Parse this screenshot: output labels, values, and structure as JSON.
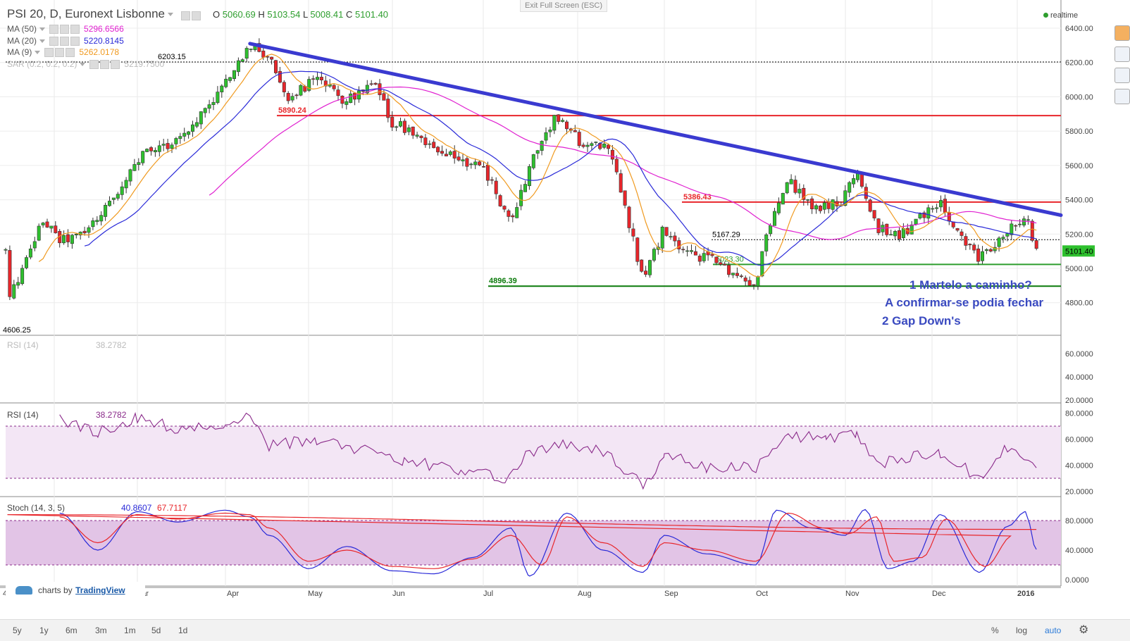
{
  "header": {
    "symbol": "PSI 20, D, Euronext Lisbonne",
    "ohlc": {
      "o_label": "O",
      "o": "5060.69",
      "h_label": "H",
      "h": "5103.54",
      "l_label": "L",
      "l": "5008.41",
      "c_label": "C",
      "c": "5101.40"
    },
    "realtime": "realtime",
    "exit_fullscreen": "Exit Full Screen (ESC)",
    "indicators": [
      {
        "label": "MA (50)",
        "value": "5296.6566",
        "color": "#e020d0"
      },
      {
        "label": "MA (20)",
        "value": "5220.8145",
        "color": "#2a2ad8"
      },
      {
        "label": "MA (9)",
        "value": "5262.0178",
        "color": "#f09a20"
      },
      {
        "label": "SAR (0.2, 0.2, 0.2)",
        "value": "5219.7500",
        "color": "#bbbbbb"
      }
    ]
  },
  "chart_data": [
    {
      "type": "candlestick",
      "title": "PSI 20, D, Euronext Lisbonne",
      "x_ticks": [
        "4",
        "Feb",
        "Mar",
        "Apr",
        "May",
        "Jun",
        "Jul",
        "Aug",
        "Sep",
        "Oct",
        "Nov",
        "Dec",
        "2016"
      ],
      "y_ticks": [
        "6400.00",
        "6200.00",
        "6000.00",
        "5800.00",
        "5600.00",
        "5400.00",
        "5200.00",
        "5000.00",
        "4800.00"
      ],
      "ylim": [
        4600,
        6450
      ],
      "last_price": "5101.40",
      "price_labels": [
        {
          "text": "6203.15",
          "value": 6203.15,
          "color": "#000000"
        },
        {
          "text": "5890.24",
          "value": 5890.24,
          "color": "#e8262b"
        },
        {
          "text": "5386.43",
          "value": 5386.43,
          "color": "#e8262b"
        },
        {
          "text": "5167.29",
          "value": 5167.29,
          "color": "#000000"
        },
        {
          "text": "5023.30",
          "value": 5023.3,
          "color": "#2e9e2e"
        },
        {
          "text": "4896.39",
          "value": 4896.39,
          "color": "#0a7a0a"
        },
        {
          "text": "4606.25",
          "value": 4606.25,
          "color": "#000000"
        }
      ],
      "horizontal_lines": [
        {
          "value": 6203.15,
          "style": "dotted",
          "color": "#000000"
        },
        {
          "value": 5890.24,
          "style": "solid",
          "color": "#e8262b"
        },
        {
          "value": 5386.43,
          "style": "solid",
          "color": "#e8262b"
        },
        {
          "value": 5167.29,
          "style": "dotted",
          "color": "#000000"
        },
        {
          "value": 5023.3,
          "style": "solid",
          "color": "#2e9e2e"
        },
        {
          "value": 4896.39,
          "style": "solid",
          "color": "#0a7a0a"
        }
      ],
      "trendline": {
        "from": {
          "x": "Apr 10",
          "y": 6310
        },
        "to": {
          "x": "Jan 8",
          "y": 5320
        },
        "color": "#3a3ad0"
      },
      "annotations": [
        "1 Martelo a caminho?",
        "A confirmar-se podia fechar",
        "2 Gap Down's"
      ],
      "series": [
        {
          "name": "MA (50)",
          "color": "#e020d0"
        },
        {
          "name": "MA (20)",
          "color": "#2a2ad8"
        },
        {
          "name": "MA (9)",
          "color": "#f09a20"
        }
      ],
      "close_path": [
        [
          "Jan 05",
          4800
        ],
        [
          "Jan 15",
          5020
        ],
        [
          "Jan 26",
          5290
        ],
        [
          "Feb 03",
          5160
        ],
        [
          "Feb 12",
          5200
        ],
        [
          "Feb 20",
          5360
        ],
        [
          "Mar 03",
          5660
        ],
        [
          "Mar 16",
          5760
        ],
        [
          "Mar 25",
          5940
        ],
        [
          "Apr 02",
          6100
        ],
        [
          "Apr 10",
          6300
        ],
        [
          "Apr 17",
          6230
        ],
        [
          "Apr 24",
          6000
        ],
        [
          "May 04",
          6100
        ],
        [
          "May 14",
          5980
        ],
        [
          "May 25",
          6060
        ],
        [
          "Jun 01",
          5850
        ],
        [
          "Jun 08",
          5800
        ],
        [
          "Jun 17",
          5660
        ],
        [
          "Jun 24",
          5640
        ],
        [
          "Jul 02",
          5560
        ],
        [
          "Jul 10",
          5250
        ],
        [
          "Jul 16",
          5600
        ],
        [
          "Jul 24",
          5880
        ],
        [
          "Aug 03",
          5720
        ],
        [
          "Aug 12",
          5720
        ],
        [
          "Aug 24",
          4940
        ],
        [
          "Aug 31",
          5220
        ],
        [
          "Sep 08",
          5080
        ],
        [
          "Sep 17",
          5060
        ],
        [
          "Sep 25",
          4960
        ],
        [
          "Oct 01",
          4910
        ],
        [
          "Oct 05",
          5220
        ],
        [
          "Oct 12",
          5510
        ],
        [
          "Oct 20",
          5350
        ],
        [
          "Oct 30",
          5380
        ],
        [
          "Nov 05",
          5560
        ],
        [
          "Nov 12",
          5240
        ],
        [
          "Nov 20",
          5180
        ],
        [
          "Nov 27",
          5300
        ],
        [
          "Dec 04",
          5380
        ],
        [
          "Dec 10",
          5200
        ],
        [
          "Dec 18",
          5050
        ],
        [
          "Dec 28",
          5230
        ],
        [
          "Jan 04",
          5310
        ],
        [
          "Jan 08",
          5101
        ]
      ]
    },
    {
      "type": "line",
      "title": "RSI (14)",
      "value": "38.2782",
      "y_ticks": [
        "60.0000",
        "40.0000",
        "20.0000"
      ],
      "ylim": [
        20,
        70
      ],
      "empty": true
    },
    {
      "type": "line",
      "title": "RSI (14)",
      "value": "38.2782",
      "color": "#8a2a8a",
      "y_ticks": [
        "80.0000",
        "60.0000",
        "40.0000",
        "20.0000"
      ],
      "ylim": [
        20,
        80
      ],
      "band": [
        30,
        70
      ],
      "points": [
        [
          "Feb 03",
          76
        ],
        [
          "Feb 17",
          65
        ],
        [
          "Mar 01",
          76
        ],
        [
          "Mar 15",
          68
        ],
        [
          "Apr 01",
          72
        ],
        [
          "Apr 10",
          79
        ],
        [
          "Apr 17",
          55
        ],
        [
          "May 04",
          60
        ],
        [
          "May 20",
          52
        ],
        [
          "Jun 05",
          44
        ],
        [
          "Jun 24",
          36
        ],
        [
          "Jul 08",
          30
        ],
        [
          "Jul 16",
          50
        ],
        [
          "Jul 28",
          56
        ],
        [
          "Aug 10",
          50
        ],
        [
          "Aug 24",
          24
        ],
        [
          "Sep 01",
          48
        ],
        [
          "Sep 15",
          38
        ],
        [
          "Oct 01",
          38
        ],
        [
          "Oct 12",
          63
        ],
        [
          "Oct 25",
          60
        ],
        [
          "Nov 05",
          64
        ],
        [
          "Nov 12",
          41
        ],
        [
          "Nov 25",
          46
        ],
        [
          "Dec 04",
          50
        ],
        [
          "Dec 18",
          30
        ],
        [
          "Dec 28",
          54
        ],
        [
          "Jan 08",
          38
        ]
      ]
    },
    {
      "type": "line",
      "title": "Stoch (14, 3, 5)",
      "y_ticks": [
        "80.0000",
        "40.0000",
        "0.0000"
      ],
      "ylim": [
        0,
        100
      ],
      "band": [
        20,
        80
      ],
      "series": [
        {
          "name": "%K",
          "value": "40.8607",
          "color": "#2a2ad8",
          "points": [
            [
              "Feb 03",
              90
            ],
            [
              "Feb 17",
              40
            ],
            [
              "Mar 01",
              92
            ],
            [
              "Mar 15",
              78
            ],
            [
              "Apr 01",
              94
            ],
            [
              "Apr 10",
              85
            ],
            [
              "Apr 17",
              60
            ],
            [
              "May 01",
              15
            ],
            [
              "May 15",
              45
            ],
            [
              "Jun 01",
              12
            ],
            [
              "Jun 15",
              8
            ],
            [
              "Jun 28",
              30
            ],
            [
              "Jul 10",
              70
            ],
            [
              "Jul 16",
              5
            ],
            [
              "Jul 28",
              90
            ],
            [
              "Aug 10",
              40
            ],
            [
              "Aug 24",
              10
            ],
            [
              "Sep 01",
              60
            ],
            [
              "Sep 15",
              35
            ],
            [
              "Oct 01",
              20
            ],
            [
              "Oct 08",
              94
            ],
            [
              "Oct 20",
              70
            ],
            [
              "Nov 01",
              60
            ],
            [
              "Nov 08",
              95
            ],
            [
              "Nov 16",
              15
            ],
            [
              "Nov 25",
              25
            ],
            [
              "Dec 04",
              88
            ],
            [
              "Dec 18",
              10
            ],
            [
              "Dec 28",
              72
            ],
            [
              "Jan 04",
              92
            ],
            [
              "Jan 08",
              41
            ]
          ]
        },
        {
          "name": "%D",
          "value": "67.7117",
          "color": "#e8262b",
          "points": [
            [
              "Feb 03",
              85
            ],
            [
              "Feb 17",
              50
            ],
            [
              "Mar 01",
              88
            ],
            [
              "Mar 15",
              82
            ],
            [
              "Apr 01",
              90
            ],
            [
              "Apr 10",
              88
            ],
            [
              "Apr 17",
              70
            ],
            [
              "May 01",
              25
            ],
            [
              "May 15",
              40
            ],
            [
              "Jun 01",
              18
            ],
            [
              "Jun 15",
              15
            ],
            [
              "Jun 28",
              28
            ],
            [
              "Jul 10",
              60
            ],
            [
              "Jul 20",
              20
            ],
            [
              "Jul 28",
              85
            ],
            [
              "Aug 10",
              50
            ],
            [
              "Aug 24",
              18
            ],
            [
              "Sep 01",
              50
            ],
            [
              "Sep 15",
              40
            ],
            [
              "Oct 01",
              25
            ],
            [
              "Oct 12",
              90
            ],
            [
              "Oct 24",
              70
            ],
            [
              "Nov 02",
              62
            ],
            [
              "Nov 12",
              85
            ],
            [
              "Nov 18",
              25
            ],
            [
              "Nov 28",
              30
            ],
            [
              "Dec 06",
              82
            ],
            [
              "Dec 20",
              18
            ],
            [
              "Dec 30",
              60
            ],
            [
              "Jan 05",
              88
            ],
            [
              "Jan 08",
              68
            ]
          ]
        }
      ]
    }
  ],
  "footer": {
    "timeframes": [
      "5y",
      "1y",
      "6m",
      "3m",
      "1m",
      "5d",
      "1d"
    ],
    "percent": "%",
    "log": "log",
    "auto": "auto",
    "brand_prefix": "charts by",
    "brand": "TradingView"
  }
}
